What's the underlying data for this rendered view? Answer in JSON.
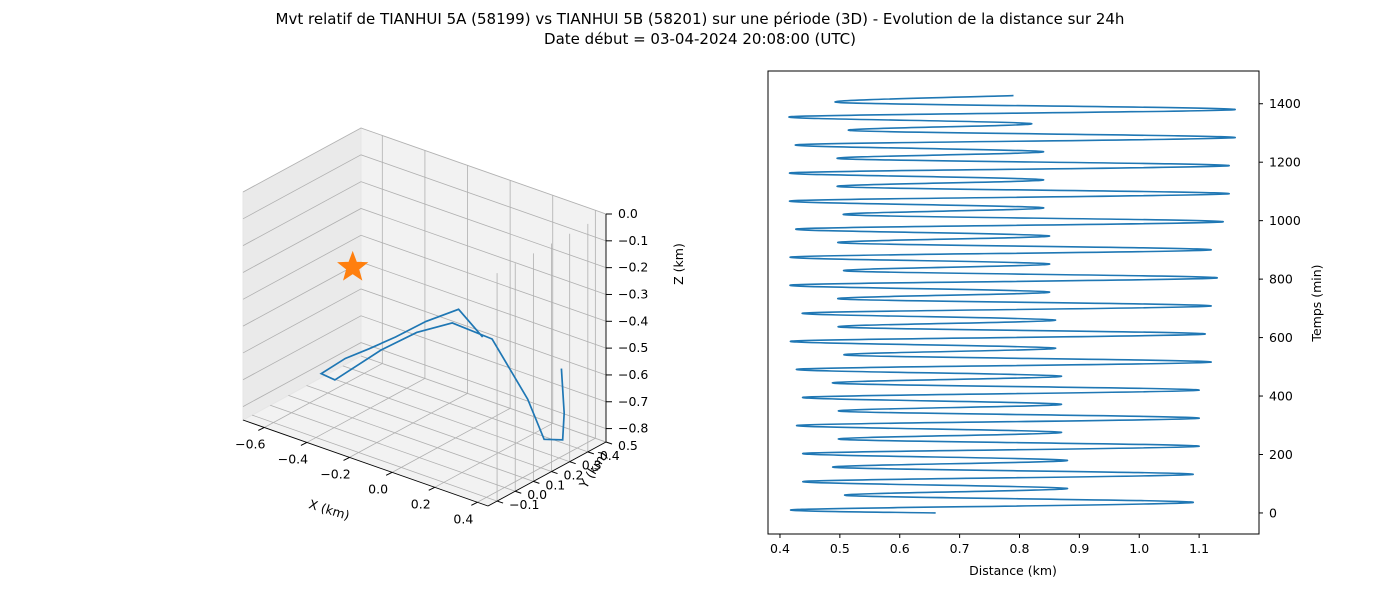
{
  "figure": {
    "title_line1": "Mvt relatif de TIANHUI 5A (58199) vs TIANHUI 5B (58201) sur une période (3D) - Evolution de la distance sur 24h",
    "title_line2": "Date début = 03-04-2024 20:08:00 (UTC)"
  },
  "colors": {
    "line": "#1f77b4",
    "marker": "#ff7f0e",
    "grid": "#b0b0b0",
    "pane": "#f2f2f2"
  },
  "chart_data": [
    {
      "type": "line",
      "projection": "3d",
      "xlabel": "X (km)",
      "ylabel": "Y (km)",
      "zlabel": "Z (km)",
      "xticks": [
        "−0.6",
        "−0.4",
        "−0.2",
        "0.0",
        "0.2",
        "0.4"
      ],
      "yticks": [
        "−0.1",
        "0.0",
        "0.1",
        "0.2",
        "0.3",
        "0.4",
        "0.5"
      ],
      "zticks": [
        "0.0",
        "−0.1",
        "−0.2",
        "−0.3",
        "−0.4",
        "−0.5",
        "−0.6",
        "−0.7",
        "−0.8"
      ],
      "xlim": [
        -0.7,
        0.45
      ],
      "ylim": [
        -0.15,
        0.5
      ],
      "zlim": [
        -0.85,
        0.0
      ],
      "grid": true,
      "series": [
        {
          "x": [
            0.36,
            0.39,
            0.4,
            0.33,
            0.27,
            0.12,
            -0.05,
            -0.2,
            -0.35,
            -0.55,
            -0.58,
            -0.45,
            -0.32,
            -0.18,
            -0.02,
            0.15,
            0.28
          ],
          "y": [
            0.36,
            0.34,
            0.32,
            0.3,
            0.28,
            0.26,
            0.24,
            0.22,
            0.2,
            0.18,
            0.14,
            0.12,
            0.1,
            0.08,
            0.06,
            0.04,
            0.02
          ],
          "z": [
            -0.55,
            -0.7,
            -0.79,
            -0.8,
            -0.66,
            -0.47,
            -0.45,
            -0.52,
            -0.62,
            -0.78,
            -0.75,
            -0.65,
            -0.57,
            -0.48,
            -0.37,
            -0.27,
            -0.33
          ]
        }
      ],
      "marker": {
        "shape": "star",
        "x": -0.33,
        "y": 0.02,
        "z": -0.24
      }
    },
    {
      "type": "line",
      "xlabel": "Distance (km)",
      "ylabel": "Temps (min)",
      "xticks": [
        "0.4",
        "0.5",
        "0.6",
        "0.7",
        "0.8",
        "0.9",
        "1.0",
        "1.1"
      ],
      "yticks": [
        "0",
        "200",
        "400",
        "600",
        "800",
        "1000",
        "1200",
        "1400"
      ],
      "xlim": [
        0.38,
        1.2
      ],
      "ylim": [
        -72,
        1512
      ],
      "grid": false,
      "series": [
        {
          "x": [
            0.66,
            0.43,
            1.09,
            0.51,
            0.88,
            0.44,
            1.09,
            0.49,
            0.88,
            0.44,
            1.1,
            0.5,
            0.87,
            0.43,
            1.1,
            0.5,
            0.87,
            0.44,
            1.1,
            0.49,
            0.87,
            0.43,
            1.12,
            0.51,
            0.86,
            0.42,
            1.11,
            0.5,
            0.86,
            0.44,
            1.12,
            0.5,
            0.85,
            0.42,
            1.13,
            0.51,
            0.85,
            0.42,
            1.12,
            0.5,
            0.85,
            0.43,
            1.14,
            0.51,
            0.84,
            0.42,
            1.15,
            0.5,
            0.84,
            0.42,
            1.15,
            0.5,
            0.84,
            0.43,
            1.16,
            0.52,
            0.82,
            0.42,
            1.16,
            0.5,
            0.79
          ],
          "y": [
            0,
            12,
            36,
            60,
            84,
            108,
            132,
            156,
            180,
            204,
            228,
            252,
            276,
            300,
            324,
            348,
            372,
            396,
            420,
            444,
            468,
            492,
            516,
            540,
            564,
            588,
            612,
            636,
            660,
            684,
            708,
            732,
            756,
            780,
            804,
            828,
            852,
            876,
            900,
            924,
            948,
            972,
            996,
            1020,
            1044,
            1068,
            1092,
            1116,
            1140,
            1164,
            1188,
            1212,
            1236,
            1260,
            1284,
            1308,
            1332,
            1356,
            1380,
            1404,
            1428
          ]
        }
      ]
    }
  ]
}
